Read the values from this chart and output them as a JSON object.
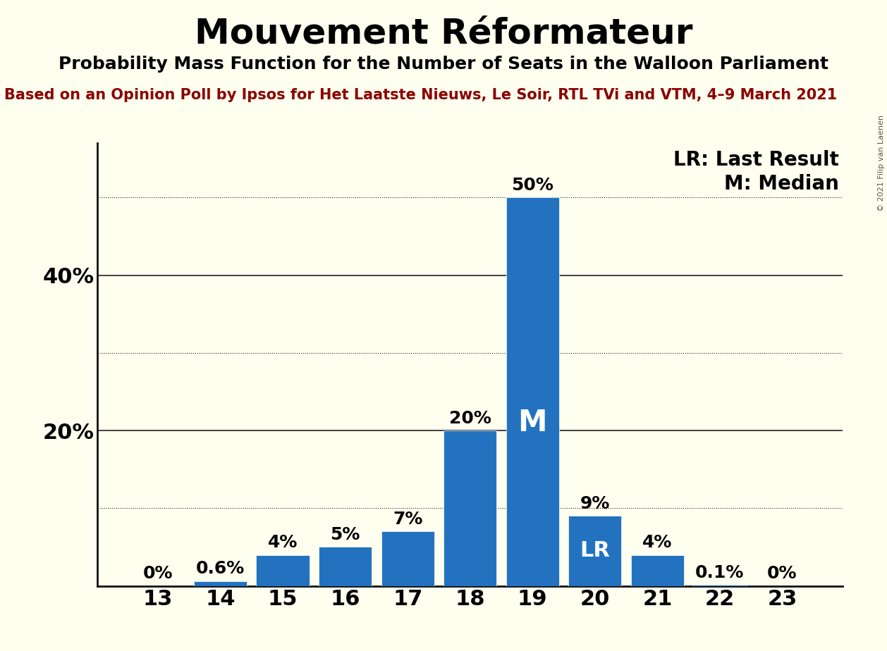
{
  "title": "Mouvement Réformateur",
  "subtitle": "Probability Mass Function for the Number of Seats in the Walloon Parliament",
  "source_line": "Based on an Opinion Poll by Ipsos for Het Laatste Nieuws, Le Soir, RTL TVi and VTM, 4–9 March 2021",
  "copyright": "© 2021 Filip van Laenen",
  "categories": [
    13,
    14,
    15,
    16,
    17,
    18,
    19,
    20,
    21,
    22,
    23
  ],
  "values": [
    0.0,
    0.6,
    4.0,
    5.0,
    7.0,
    20.0,
    50.0,
    9.0,
    4.0,
    0.1,
    0.0
  ],
  "bar_labels": [
    "0%",
    "0.6%",
    "4%",
    "5%",
    "7%",
    "20%",
    "50%",
    "9%",
    "4%",
    "0.1%",
    "0%"
  ],
  "bar_color": "#2372BF",
  "median_seat": 19,
  "last_result_seat": 20,
  "background_color": "#FFFFF0",
  "title_fontsize": 36,
  "subtitle_fontsize": 18,
  "source_fontsize": 15,
  "ytick_labels": [
    "20%",
    "40%"
  ],
  "ytick_values": [
    20,
    40
  ],
  "solid_grid": [
    20,
    40
  ],
  "dotted_grid": [
    10,
    30,
    50
  ],
  "ylim": [
    0,
    57
  ],
  "legend_lr": "LR: Last Result",
  "legend_m": "M: Median",
  "grid_color": "#222222",
  "axis_color": "#111111",
  "label_above_fontsize": 18,
  "tick_fontsize": 22,
  "source_color": "#8B0000",
  "copyright_color": "#555555"
}
